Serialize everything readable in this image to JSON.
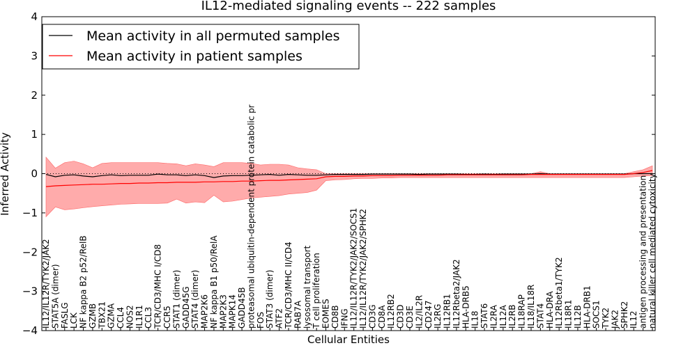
{
  "chart_data": {
    "type": "line",
    "title": "IL12-mediated signaling events -- 222 samples",
    "xlabel": "Cellular Entities",
    "ylabel": "Inferred Activity",
    "ylim": [
      -4,
      4
    ],
    "yticks": [
      "−4",
      "−3",
      "−2",
      "−1",
      "0",
      "1",
      "2",
      "3",
      "4"
    ],
    "grid": false,
    "legend_position": "top-left",
    "categories": [
      "IL12/IL12R/TYK2/JAK2",
      "STAT5A (dimer)",
      "FASLG",
      "LCK",
      "NF kappa B2 p52/RelB",
      "GZMB",
      "TBX21",
      "GZMA",
      "CCL4",
      "NOS2",
      "IL1R1",
      "CCL3",
      "TCR/CD3/MHC I/CD8",
      "CCR5",
      "STAT1 (dimer)",
      "GADD45G",
      "STAT4 (dimer)",
      "MAP2K6",
      "NF kappa B1 p50/RelA",
      "MAP2K3",
      "MAPK14",
      "GADD45B",
      "proteasomal ubiquitin-dependent protein catabolic pr",
      "FOS",
      "STAT3 (dimer)",
      "ATF2",
      "TCR/CD3/MHC II/CD4",
      "RAB7A",
      "lysosomal transport",
      "T cell proliferation",
      "EOMES",
      "CD8B",
      "IFNG",
      "IL12/IL12R/TYK2/JAK2/SOCS1",
      "IL12/IL12R/TYK2/JAK2/SPHK2",
      "CD3G",
      "CD8A",
      "IL12RB2",
      "CD3D",
      "CD3E",
      "IL2/IL2R",
      "CD247",
      "IL2RG",
      "IL12RB1",
      "IL12Rbeta2/JAK2",
      "HLA-DRB5",
      "IL18",
      "STAT6",
      "IL2RA",
      "IL12A",
      "IL2RB",
      "IL18RAP",
      "IL18/IL18R",
      "STAT4",
      "HLA-DRA",
      "IL12Rbeta1/TYK2",
      "IL18R1",
      "IL12B",
      "HLA-DRB1",
      "SOCS1",
      "TYK2",
      "JAK2",
      "SPHK2",
      "IL12",
      "antigen processing and presentation",
      "natural killer cell mediated cytoxicity"
    ],
    "series": [
      {
        "name": "Mean activity in all permuted samples",
        "color": "#000000",
        "values": [
          -0.02,
          -0.08,
          -0.04,
          -0.03,
          -0.06,
          -0.08,
          -0.05,
          -0.03,
          -0.05,
          -0.04,
          -0.04,
          -0.04,
          -0.01,
          -0.03,
          -0.03,
          -0.05,
          -0.03,
          -0.05,
          -0.1,
          -0.06,
          -0.05,
          -0.05,
          -0.04,
          -0.03,
          -0.02,
          -0.04,
          -0.02,
          -0.03,
          -0.04,
          -0.04,
          -0.03,
          -0.02,
          -0.02,
          -0.02,
          -0.02,
          -0.01,
          -0.01,
          -0.01,
          -0.01,
          -0.01,
          -0.02,
          -0.01,
          -0.01,
          -0.01,
          -0.01,
          -0.02,
          -0.02,
          -0.01,
          -0.02,
          -0.01,
          -0.01,
          -0.01,
          -0.01,
          0.0,
          -0.01,
          -0.01,
          -0.01,
          -0.01,
          -0.01,
          -0.01,
          -0.01,
          -0.01,
          -0.01,
          0.0,
          0.0,
          0.0
        ]
      },
      {
        "name": "Mean activity in patient samples",
        "color": "#ff0000",
        "values": [
          -0.33,
          -0.31,
          -0.3,
          -0.29,
          -0.28,
          -0.27,
          -0.27,
          -0.26,
          -0.25,
          -0.25,
          -0.24,
          -0.24,
          -0.23,
          -0.23,
          -0.22,
          -0.22,
          -0.22,
          -0.21,
          -0.21,
          -0.2,
          -0.2,
          -0.19,
          -0.19,
          -0.18,
          -0.17,
          -0.17,
          -0.16,
          -0.15,
          -0.14,
          -0.13,
          -0.08,
          -0.07,
          -0.07,
          -0.06,
          -0.06,
          -0.05,
          -0.05,
          -0.05,
          -0.04,
          -0.04,
          -0.04,
          -0.04,
          -0.04,
          -0.03,
          -0.03,
          -0.03,
          -0.03,
          -0.03,
          -0.03,
          -0.03,
          -0.03,
          -0.03,
          -0.02,
          -0.02,
          -0.02,
          -0.02,
          -0.02,
          -0.02,
          -0.02,
          -0.02,
          -0.02,
          -0.02,
          -0.02,
          0.0,
          0.03,
          0.08
        ]
      }
    ],
    "band_upper": [
      0.42,
      0.14,
      0.28,
      0.32,
      0.25,
      0.15,
      0.26,
      0.28,
      0.28,
      0.28,
      0.28,
      0.28,
      0.28,
      0.26,
      0.25,
      0.2,
      0.25,
      0.22,
      0.18,
      0.28,
      0.28,
      0.28,
      0.26,
      0.22,
      0.24,
      0.24,
      0.22,
      0.15,
      0.12,
      0.1,
      0.0,
      0.0,
      0.0,
      0.0,
      0.0,
      0.0,
      0.0,
      0.0,
      0.0,
      0.0,
      0.0,
      0.0,
      0.0,
      0.0,
      0.0,
      0.0,
      0.0,
      0.0,
      0.0,
      0.0,
      0.0,
      0.0,
      0.0,
      0.05,
      0.0,
      0.0,
      0.0,
      0.0,
      0.0,
      0.0,
      0.0,
      0.0,
      0.0,
      0.05,
      0.1,
      0.2
    ],
    "band_lower": [
      -1.1,
      -0.85,
      -0.92,
      -0.9,
      -0.87,
      -0.84,
      -0.82,
      -0.8,
      -0.78,
      -0.77,
      -0.76,
      -0.76,
      -0.76,
      -0.75,
      -0.65,
      -0.75,
      -0.72,
      -0.74,
      -0.55,
      -0.72,
      -0.7,
      -0.66,
      -0.62,
      -0.6,
      -0.58,
      -0.56,
      -0.52,
      -0.5,
      -0.48,
      -0.42,
      -0.18,
      -0.16,
      -0.15,
      -0.13,
      -0.12,
      -0.12,
      -0.11,
      -0.11,
      -0.1,
      -0.1,
      -0.1,
      -0.1,
      -0.1,
      -0.1,
      -0.1,
      -0.1,
      -0.1,
      -0.1,
      -0.1,
      -0.1,
      -0.1,
      -0.1,
      -0.1,
      -0.1,
      -0.1,
      -0.1,
      -0.1,
      -0.1,
      -0.1,
      -0.1,
      -0.1,
      -0.1,
      -0.1,
      -0.08,
      -0.06,
      -0.05
    ],
    "band_color": "#ff6666"
  }
}
